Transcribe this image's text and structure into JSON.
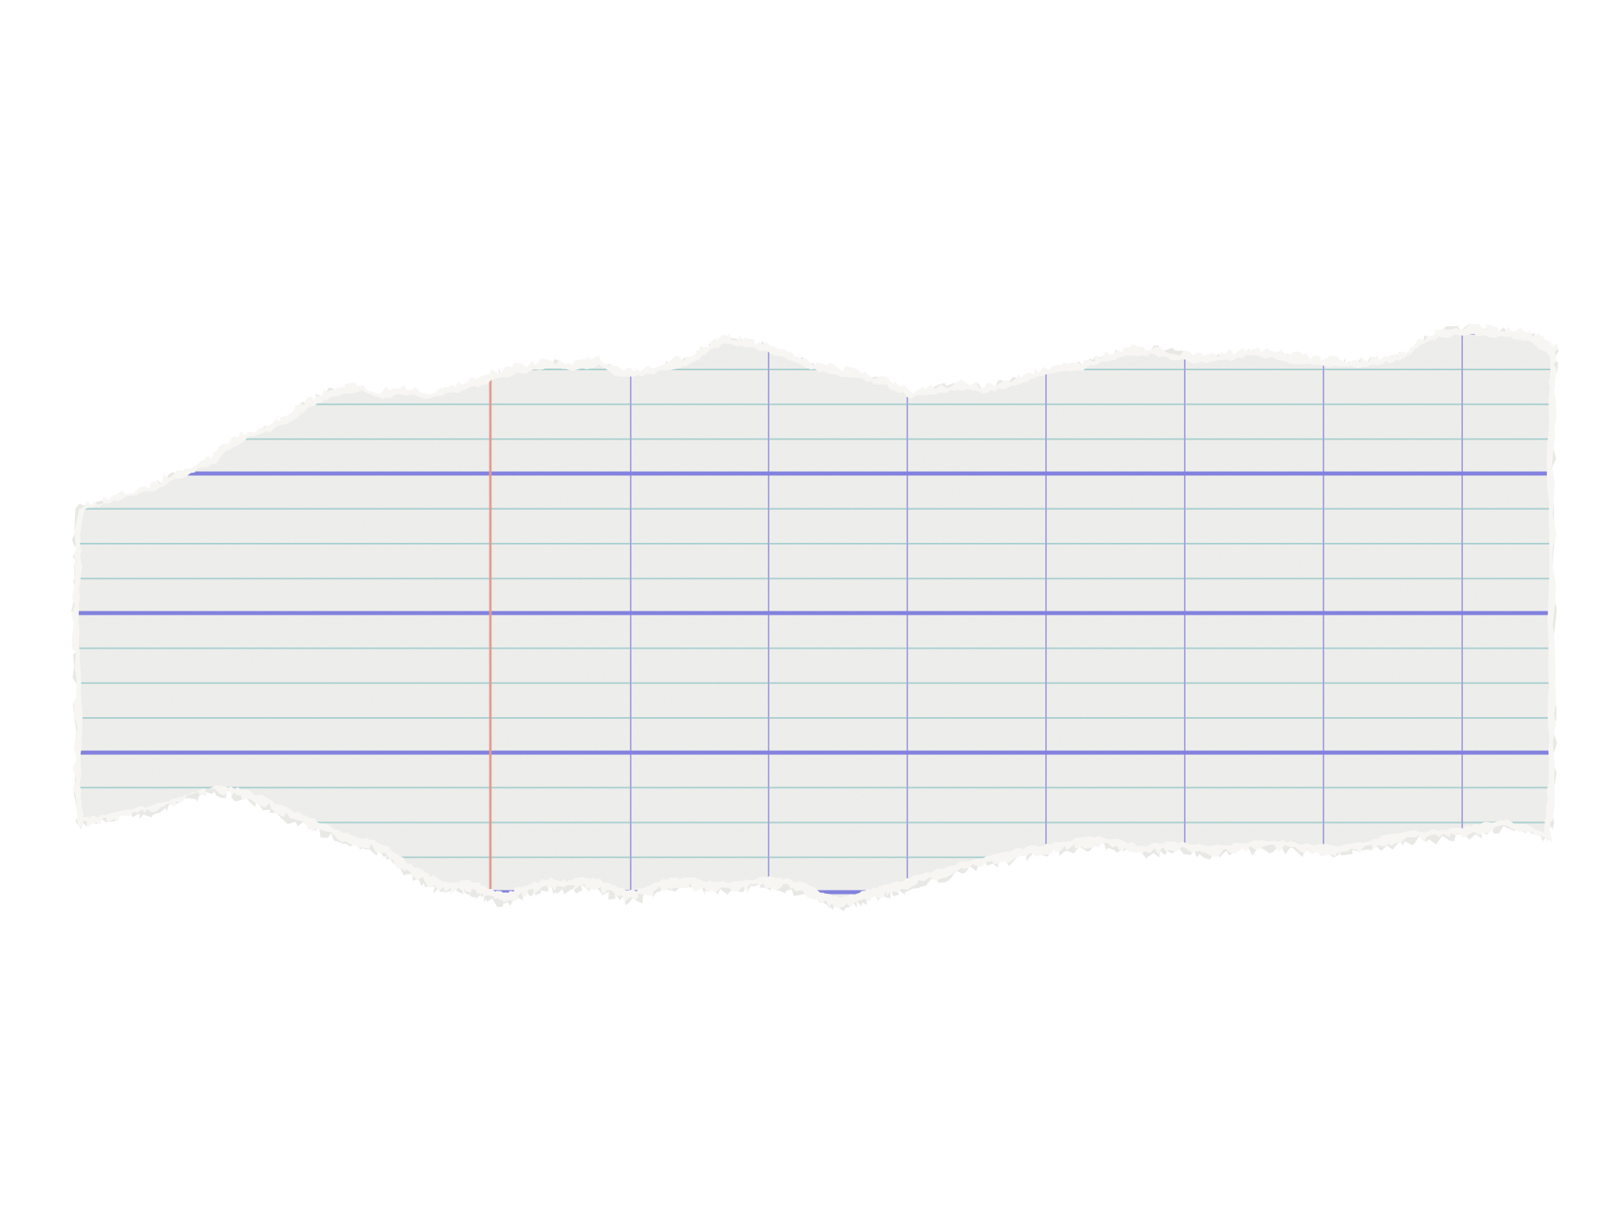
{
  "image": {
    "subject": "torn-paper-strip",
    "background_color": "#ffffff",
    "paper_color": "#efefed",
    "paper_edge_color": "#f7f6f3",
    "shadow_color": "#d9d8d4",
    "rule_colors": {
      "fine_horizontal": "#a9d1d1",
      "bold_horizontal": "#7f7ee0",
      "vertical_grid": "#a6a3e0",
      "margin_line": "#e39a8e"
    }
  }
}
